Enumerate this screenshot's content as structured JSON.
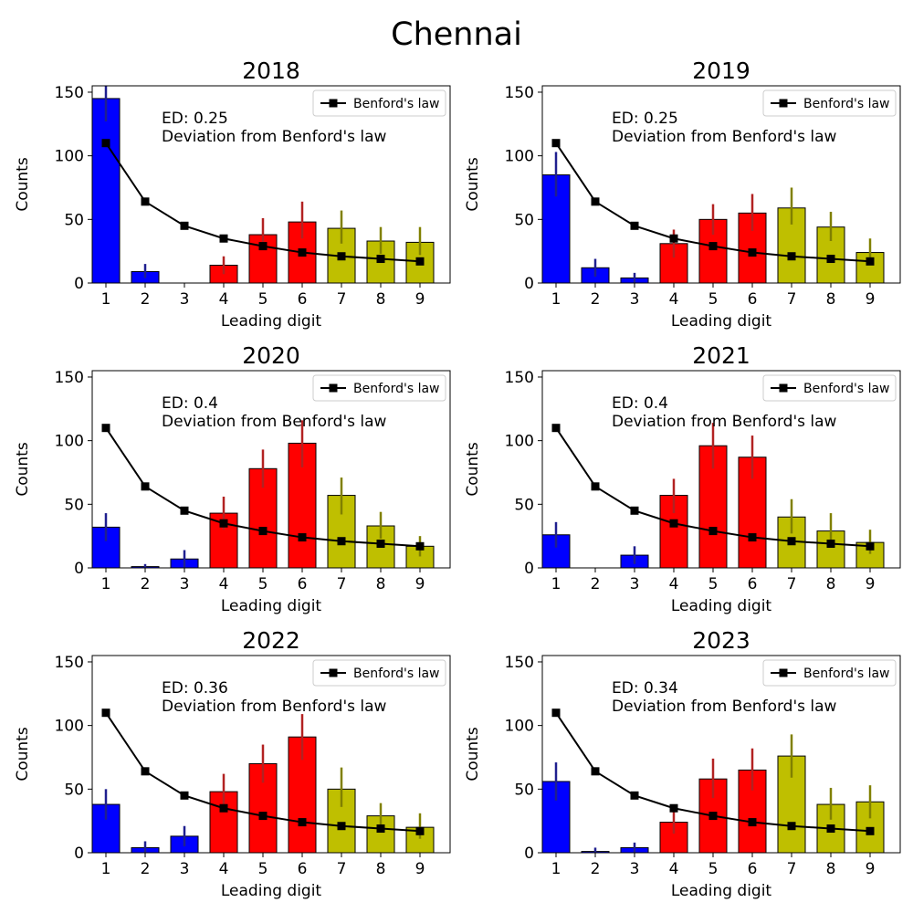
{
  "figure": {
    "title": "Chennai"
  },
  "chart_data": {
    "type": "bar",
    "title": "Chennai",
    "xlabel": "Leading digit",
    "ylabel": "Counts",
    "ylim": [
      0,
      155
    ],
    "yticks": [
      0,
      50,
      100,
      150
    ],
    "categories": [
      "1",
      "2",
      "3",
      "4",
      "5",
      "6",
      "7",
      "8",
      "9"
    ],
    "legend": {
      "label": "Benford's law",
      "placement": "top-right"
    },
    "benford": [
      110,
      64,
      45,
      35,
      29,
      24,
      21,
      19,
      17
    ],
    "bar_colors": [
      "#0000ff",
      "#0000ff",
      "#0000ff",
      "#ff0000",
      "#ff0000",
      "#ff0000",
      "#bfbf00",
      "#bfbf00",
      "#bfbf00"
    ],
    "error_colors": [
      "#1f1f8f",
      "#1f1f8f",
      "#1f1f8f",
      "#b22222",
      "#b22222",
      "#b22222",
      "#808000",
      "#808000",
      "#808000"
    ],
    "annotation_line2": "Deviation from Benford's law",
    "panels": [
      {
        "title": "2018",
        "annotation": "ED: 0.25",
        "values": [
          145,
          9,
          0,
          14,
          38,
          48,
          43,
          33,
          32
        ],
        "errors": [
          [
            127,
            157
          ],
          [
            4,
            15
          ],
          [
            0,
            0
          ],
          [
            7,
            21
          ],
          [
            27,
            51
          ],
          [
            35,
            64
          ],
          [
            31,
            57
          ],
          [
            23,
            44
          ],
          [
            22,
            44
          ]
        ]
      },
      {
        "title": "2019",
        "annotation": "ED: 0.25",
        "values": [
          85,
          12,
          4,
          31,
          50,
          55,
          59,
          44,
          24
        ],
        "errors": [
          [
            68,
            103
          ],
          [
            5,
            19
          ],
          [
            0,
            8
          ],
          [
            20,
            42
          ],
          [
            38,
            62
          ],
          [
            41,
            70
          ],
          [
            46,
            75
          ],
          [
            33,
            56
          ],
          [
            15,
            35
          ]
        ]
      },
      {
        "title": "2020",
        "annotation": "ED: 0.4",
        "values": [
          32,
          1,
          7,
          43,
          78,
          98,
          57,
          33,
          17
        ],
        "errors": [
          [
            21,
            43
          ],
          [
            0,
            3
          ],
          [
            0,
            14
          ],
          [
            30,
            56
          ],
          [
            63,
            93
          ],
          [
            79,
            116
          ],
          [
            42,
            71
          ],
          [
            23,
            44
          ],
          [
            9,
            25
          ]
        ]
      },
      {
        "title": "2021",
        "annotation": "ED: 0.4",
        "values": [
          26,
          0,
          10,
          57,
          96,
          87,
          40,
          29,
          20
        ],
        "errors": [
          [
            16,
            36
          ],
          [
            0,
            0
          ],
          [
            3,
            17
          ],
          [
            43,
            70
          ],
          [
            78,
            114
          ],
          [
            70,
            104
          ],
          [
            27,
            54
          ],
          [
            18,
            43
          ],
          [
            11,
            30
          ]
        ]
      },
      {
        "title": "2022",
        "annotation": "ED: 0.36",
        "values": [
          38,
          4,
          13,
          48,
          70,
          91,
          50,
          29,
          20
        ],
        "errors": [
          [
            26,
            50
          ],
          [
            0,
            9
          ],
          [
            5,
            21
          ],
          [
            34,
            62
          ],
          [
            55,
            85
          ],
          [
            73,
            109
          ],
          [
            36,
            67
          ],
          [
            20,
            39
          ],
          [
            11,
            31
          ]
        ]
      },
      {
        "title": "2023",
        "annotation": "ED: 0.34",
        "values": [
          56,
          1,
          4,
          24,
          58,
          65,
          76,
          38,
          40
        ],
        "errors": [
          [
            41,
            71
          ],
          [
            0,
            4
          ],
          [
            0,
            8
          ],
          [
            15,
            33
          ],
          [
            43,
            74
          ],
          [
            49,
            82
          ],
          [
            59,
            93
          ],
          [
            26,
            51
          ],
          [
            27,
            53
          ]
        ]
      }
    ]
  }
}
